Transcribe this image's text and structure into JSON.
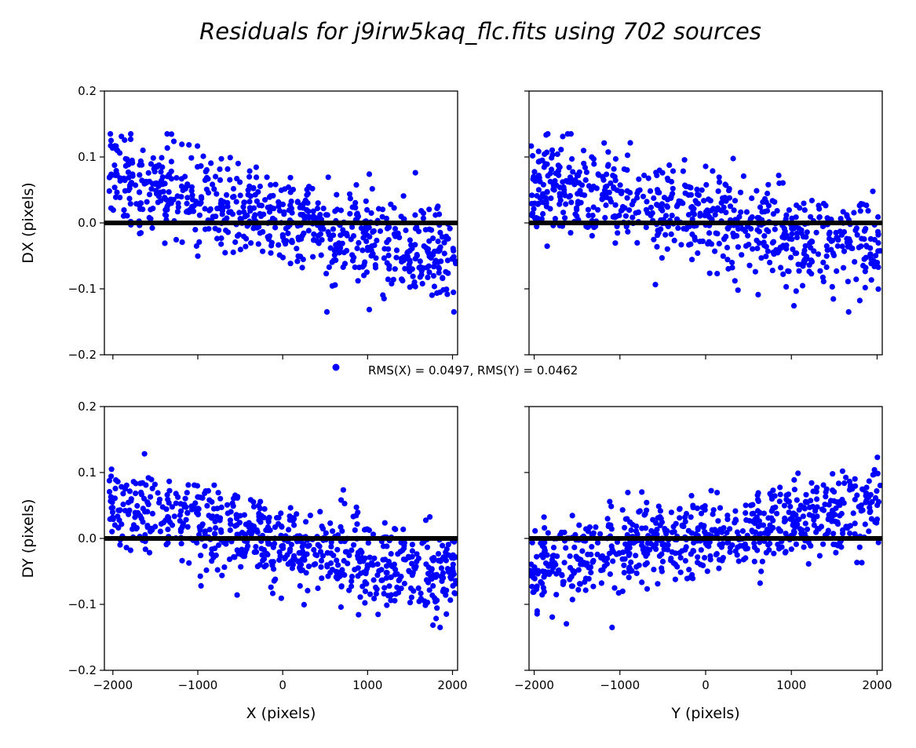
{
  "chart_data": {
    "type": "scatter",
    "title": "Residuals for j9irw5kaq_flc.fits using 702 sources",
    "legend": {
      "label": "RMS(X) = 0.0497, RMS(Y) = 0.0462",
      "placement": "center"
    },
    "n_sources": 702,
    "marker_color": "#0000ff",
    "zero_line_color": "#000000",
    "panels": [
      {
        "id": "dx-vs-x",
        "xvar": "X",
        "yvar": "DX",
        "xlabel": "",
        "ylabel": "DX (pixels)",
        "xlim": [
          -2100,
          2060
        ],
        "ylim": [
          -0.2,
          0.2
        ],
        "trend": [
          0.07,
          -0.06
        ],
        "spread": 0.035,
        "seed": 11,
        "show_xticklabels": false,
        "show_yticklabels": true
      },
      {
        "id": "dx-vs-y",
        "xvar": "Y",
        "yvar": "DX",
        "xlabel": "",
        "ylabel": "",
        "xlim": [
          -2060,
          2060
        ],
        "ylim": [
          -0.2,
          0.2
        ],
        "trend": [
          0.06,
          -0.05
        ],
        "spread": 0.035,
        "seed": 23,
        "show_xticklabels": false,
        "show_yticklabels": false
      },
      {
        "id": "dy-vs-x",
        "xvar": "X",
        "yvar": "DY",
        "xlabel": "X (pixels)",
        "ylabel": "DY (pixels)",
        "xlim": [
          -2100,
          2060
        ],
        "ylim": [
          -0.2,
          0.2
        ],
        "trend": [
          0.05,
          -0.06
        ],
        "spread": 0.032,
        "seed": 37,
        "show_xticklabels": true,
        "show_yticklabels": true
      },
      {
        "id": "dy-vs-y",
        "xvar": "Y",
        "yvar": "DY",
        "xlabel": "Y (pixels)",
        "ylabel": "",
        "xlim": [
          -2060,
          2060
        ],
        "ylim": [
          -0.2,
          0.2
        ],
        "trend": [
          -0.04,
          0.05
        ],
        "spread": 0.032,
        "seed": 41,
        "show_xticklabels": true,
        "show_yticklabels": false
      }
    ],
    "xticks": [
      -2000,
      -1000,
      0,
      1000,
      2000
    ],
    "xtick_labels": [
      "−2000",
      "−1000",
      "0",
      "1000",
      "2000"
    ],
    "yticks": [
      -0.2,
      -0.1,
      0.0,
      0.1,
      0.2
    ],
    "ytick_labels": [
      "−0.2",
      "−0.1",
      "0.0",
      "0.1",
      "0.2"
    ]
  }
}
